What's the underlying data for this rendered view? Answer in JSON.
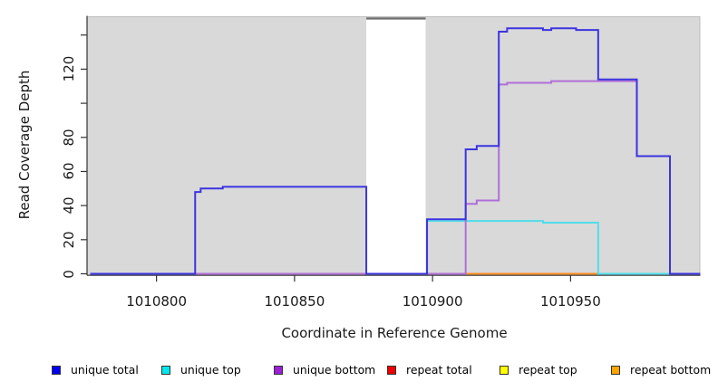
{
  "chart_data": {
    "type": "line",
    "subtype": "step-coverage",
    "title": "",
    "xlabel": "Coordinate in Reference Genome",
    "ylabel": "Read Coverage Depth",
    "x_range": [
      1010775,
      1010997
    ],
    "y_range": [
      0,
      151
    ],
    "grid": false,
    "legend_position": "bottom",
    "panel_color": "#d9d9d9",
    "axis_color": "#333333",
    "box_light_color": "#bdbdbd",
    "masked_gap": {
      "x0": 1010876,
      "x1": 1010897.5,
      "top_bar_color": "#6f6f6f"
    },
    "x_ticks": [
      {
        "value": 1010800,
        "label": "1010800"
      },
      {
        "value": 1010850,
        "label": "1010850"
      },
      {
        "value": 1010900,
        "label": "1010900"
      },
      {
        "value": 1010950,
        "label": "1010950"
      }
    ],
    "y_ticks": [
      {
        "value": 0,
        "label": "0"
      },
      {
        "value": 20,
        "label": "20"
      },
      {
        "value": 40,
        "label": "40"
      },
      {
        "value": 60,
        "label": "60"
      },
      {
        "value": 80,
        "label": "80"
      },
      {
        "value": 100,
        "label": ""
      },
      {
        "value": 120,
        "label": "120"
      },
      {
        "value": 140,
        "label": ""
      }
    ],
    "series": [
      {
        "name": "unique total",
        "line_color": "#3c34e0",
        "points": [
          [
            1010776,
            0
          ],
          [
            1010814,
            48
          ],
          [
            1010816,
            50
          ],
          [
            1010824,
            51
          ],
          [
            1010876,
            0
          ],
          [
            1010898,
            32
          ],
          [
            1010912,
            73
          ],
          [
            1010916,
            75
          ],
          [
            1010924,
            142
          ],
          [
            1010927,
            144
          ],
          [
            1010940,
            143
          ],
          [
            1010943,
            144
          ],
          [
            1010952,
            143
          ],
          [
            1010960,
            114
          ],
          [
            1010974,
            69
          ],
          [
            1010986,
            0
          ],
          [
            1010997,
            0
          ]
        ]
      },
      {
        "name": "unique top",
        "line_color": "#4fdde8",
        "points": [
          [
            1010776,
            0
          ],
          [
            1010898,
            31
          ],
          [
            1010940,
            30
          ],
          [
            1010960,
            0
          ],
          [
            1010997,
            0
          ]
        ]
      },
      {
        "name": "unique bottom",
        "line_color": "#b06fd8",
        "points": [
          [
            1010776,
            0
          ],
          [
            1010912,
            41
          ],
          [
            1010916,
            43
          ],
          [
            1010924,
            111
          ],
          [
            1010927,
            112
          ],
          [
            1010943,
            113
          ],
          [
            1010974,
            69
          ],
          [
            1010986,
            0
          ],
          [
            1010997,
            0
          ]
        ]
      },
      {
        "name": "repeat total",
        "line_color": "#c7405c",
        "baseline_segments": [
          [
            1010898,
            1010912
          ]
        ]
      },
      {
        "name": "repeat top",
        "line_color": "#f0f040",
        "baseline_segments": []
      },
      {
        "name": "repeat bottom",
        "line_color": "#ff8d1e",
        "baseline_segments": [
          [
            1010912,
            1010960
          ]
        ]
      }
    ],
    "overlap_baseline": {
      "color": "#8fd792",
      "segments": [
        [
          1010814,
          1010876
        ],
        [
          1010960,
          1010986
        ]
      ]
    },
    "legend": [
      {
        "label": "unique total",
        "color": "#0000f0"
      },
      {
        "label": "unique top",
        "color": "#00e8ee"
      },
      {
        "label": "unique bottom",
        "color": "#9b1fd8"
      },
      {
        "label": "repeat total",
        "color": "#ee0000"
      },
      {
        "label": "repeat top",
        "color": "#ffff00"
      },
      {
        "label": "repeat bottom",
        "color": "#ffa500"
      }
    ]
  }
}
